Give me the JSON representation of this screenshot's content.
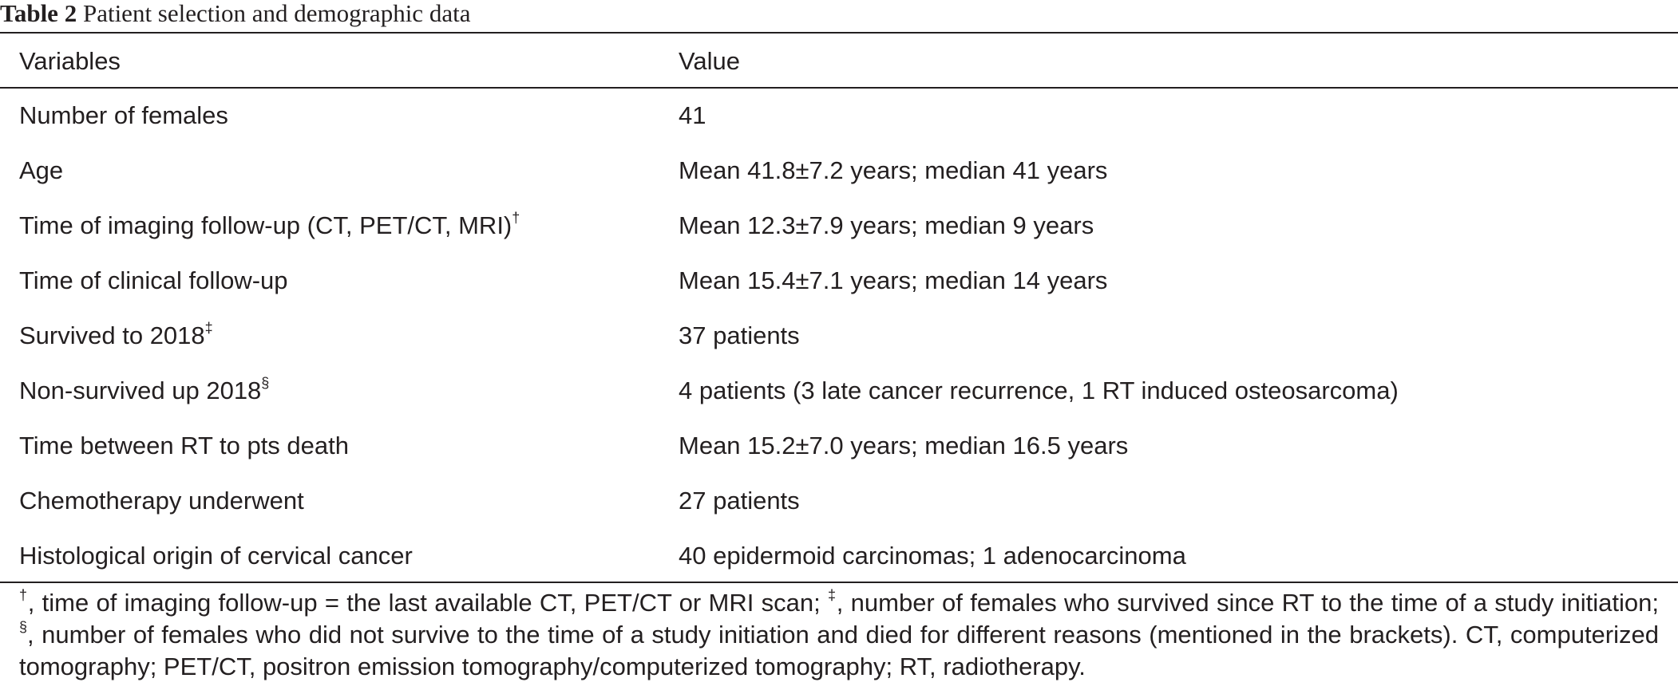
{
  "caption": {
    "label": "Table 2",
    "title": "Patient selection and demographic data"
  },
  "table": {
    "headers": [
      "Variables",
      "Value"
    ],
    "rows": [
      {
        "variable": "Number of females",
        "mark": "",
        "value": "41"
      },
      {
        "variable": "Age",
        "mark": "",
        "value": "Mean 41.8±7.2 years; median 41 years"
      },
      {
        "variable": "Time of imaging follow-up (CT, PET/CT, MRI)",
        "mark": "†",
        "value": "Mean 12.3±7.9 years; median 9 years"
      },
      {
        "variable": "Time of clinical follow-up",
        "mark": "",
        "value": "Mean 15.4±7.1 years; median 14 years"
      },
      {
        "variable": "Survived to 2018",
        "mark": "‡",
        "value": "37 patients"
      },
      {
        "variable": "Non-survived up 2018",
        "mark": "§",
        "value": "4 patients (3 late cancer recurrence, 1 RT induced osteosarcoma)"
      },
      {
        "variable": "Time between RT to pts death",
        "mark": "",
        "value": "Mean 15.2±7.0 years; median 16.5 years"
      },
      {
        "variable": "Chemotherapy underwent",
        "mark": "",
        "value": "27 patients"
      },
      {
        "variable": "Histological origin of cervical cancer",
        "mark": "",
        "value": "40 epidermoid carcinomas; 1 adenocarcinoma"
      }
    ]
  },
  "footnote": {
    "mark1": "†",
    "text1": ", time of imaging follow-up = the last available CT, PET/CT or MRI scan; ",
    "mark2": "‡",
    "text2": ", number of females who survived since RT to the time of a study initiation; ",
    "mark3": "§",
    "text3": ", number of females who did not survive to the time of a study initiation and died for different reasons (mentioned in the brackets). CT, computerized tomography; PET/CT, positron emission tomography/computerized tomography; RT, radiotherapy."
  }
}
